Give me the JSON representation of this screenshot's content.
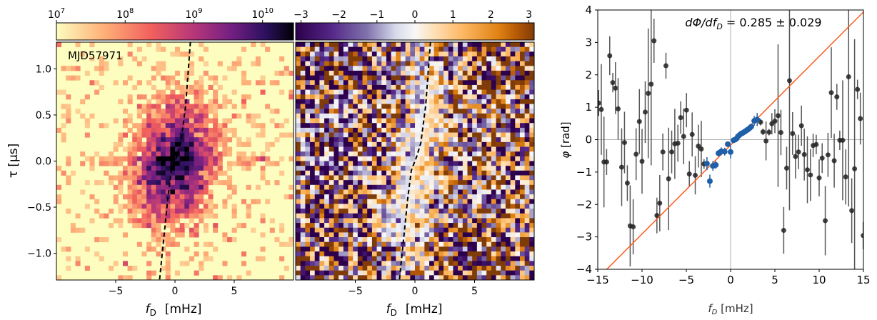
{
  "chart_data": [
    {
      "type": "heatmap",
      "panel_label": "MJD57971",
      "xlabel": "f_D   [mHz]",
      "xlabel_main": "f",
      "xlabel_sub": "D",
      "xlabel_unit": "[mHz]",
      "ylabel": "τ   [μs]",
      "xlim": [
        -10,
        10
      ],
      "ylim": [
        -1.29,
        1.29
      ],
      "xticks": [
        -5,
        0,
        5
      ],
      "xtick_labels": [
        "−5",
        "0",
        "5"
      ],
      "yticks": [
        1.0,
        0.5,
        0.0,
        -0.5,
        -1.0
      ],
      "ytick_labels": [
        "1.0",
        "0.5",
        "0.0",
        "−0.5",
        "−1.0"
      ],
      "colormap": "magma_r",
      "colorbar": {
        "scale": "log",
        "range_log10": [
          7,
          10.45
        ],
        "ticks_log10": [
          7,
          8,
          9,
          10
        ],
        "tick_labels": [
          "10",
          "10",
          "10",
          "10"
        ],
        "tick_exponents": [
          "7",
          "8",
          "9",
          "10"
        ]
      },
      "dashed_curve": {
        "x": [
          1.3,
          0.9,
          0.5,
          0.15,
          0.0,
          -0.3,
          -0.6,
          -1.3
        ],
        "y": [
          1.29,
          0.6,
          0.2,
          0.05,
          0.0,
          -0.1,
          -0.4,
          -1.29
        ]
      }
    },
    {
      "type": "heatmap",
      "xlabel_main": "f",
      "xlabel_sub": "D",
      "xlabel_unit": "[mHz]",
      "xlim": [
        -10,
        10
      ],
      "ylim": [
        -1.29,
        1.29
      ],
      "xticks": [
        -5,
        0,
        5
      ],
      "xtick_labels": [
        "−5",
        "0",
        "5"
      ],
      "colormap": "PuOr_r",
      "colorbar": {
        "scale": "linear",
        "range": [
          -3.14,
          3.14
        ],
        "ticks": [
          -3,
          -2,
          -1,
          0,
          1,
          2,
          3
        ],
        "tick_labels": [
          "−3",
          "−2",
          "−1",
          "0",
          "1",
          "2",
          "3"
        ]
      },
      "dashed_curve": {
        "x": [
          1.3,
          0.9,
          0.5,
          0.15,
          0.0,
          -0.3,
          -0.6,
          -1.3
        ],
        "y": [
          1.29,
          0.6,
          0.2,
          0.05,
          0.0,
          -0.1,
          -0.4,
          -1.29
        ]
      }
    },
    {
      "type": "scatter",
      "annotation": "dΦ/df_D = 0.285 ± 0.029",
      "annotation_parts": {
        "lhs": "dΦ/df",
        "sub": "D",
        "rhs": " = 0.285 ± 0.029"
      },
      "xlabel_main": "f",
      "xlabel_sub": "D",
      "xlabel_unit": " [mHz]",
      "ylabel_main": "φ",
      "ylabel_unit": " [rad]",
      "xlim": [
        -15,
        15
      ],
      "ylim": [
        -4,
        4
      ],
      "xticks": [
        -15,
        -10,
        -5,
        0,
        5,
        10,
        15
      ],
      "xtick_labels": [
        "−15",
        "−10",
        "−5",
        "0",
        "5",
        "10",
        "15"
      ],
      "yticks": [
        4,
        3,
        2,
        1,
        0,
        -1,
        -2,
        -3,
        -4
      ],
      "ytick_labels": [
        "4",
        "3",
        "2",
        "1",
        "0",
        "−1",
        "−2",
        "−3",
        "−4"
      ],
      "colors": {
        "points": "#222222",
        "fit_points": "#1f5fa8",
        "fit_line": "#ff5a1a",
        "zero_lines": "#b0b0b0"
      },
      "fit_line": {
        "x": [
          -15,
          15
        ],
        "y": [
          -4.28,
          3.94
        ]
      },
      "series": [
        {
          "x": [
            -14.9,
            -14.6,
            -14.3,
            -14.0,
            -13.65,
            -13.3,
            -13.0,
            -12.7,
            -12.3,
            -11.98,
            -11.66,
            -11.34,
            -11.0,
            -10.67,
            -10.3,
            -10.0,
            -9.64,
            -9.3,
            -8.97,
            -8.65,
            -8.32,
            -8.0,
            -7.65,
            -7.3,
            -7.0,
            -6.65,
            -6.3,
            -5.95,
            -5.63,
            -5.3,
            -4.98,
            -4.66,
            -4.34,
            -3.99,
            -3.64,
            -3.31,
            -3.0,
            3.39,
            3.66,
            4.0,
            4.34,
            4.66,
            5.0,
            5.36,
            5.68,
            6.0,
            6.33,
            6.65,
            7.0,
            7.33,
            7.67,
            8.0,
            8.32,
            8.67,
            9.02,
            9.32,
            9.67,
            10.0,
            10.34,
            10.69,
            11.0,
            11.37,
            11.7,
            12.0,
            12.33,
            12.66,
            13.0,
            13.33,
            13.68,
            14.0,
            14.33,
            14.65,
            14.97
          ],
          "y": [
            1.13,
            0.93,
            -0.69,
            -0.69,
            2.59,
            1.76,
            1.59,
            0.95,
            -0.85,
            -0.09,
            -1.34,
            -2.66,
            -2.69,
            -0.45,
            0.56,
            -0.67,
            0.85,
            1.43,
            1.71,
            3.05,
            -2.34,
            -1.96,
            -0.38,
            2.28,
            -1.21,
            -0.38,
            -0.13,
            -0.11,
            0.68,
            0.1,
            0.91,
            -1.06,
            0.16,
            -1.1,
            -0.2,
            -0.29,
            -0.75,
            0.54,
            0.24,
            -0.04,
            0.23,
            0.49,
            0.57,
            0.74,
            0.22,
            -2.8,
            -0.88,
            1.82,
            0.19,
            -0.52,
            -0.38,
            0.43,
            -0.46,
            -0.93,
            -1.09,
            -0.18,
            -0.15,
            -1.18,
            -0.57,
            -2.5,
            -0.47,
            1.45,
            -0.65,
            1.32,
            -0.02,
            -0.02,
            -1.15,
            1.94,
            -2.19,
            -0.9,
            1.55,
            0.65,
            -2.96
          ],
          "yerr": [
            0.4,
            1.4,
            1.4,
            0.4,
            0.6,
            0.3,
            0.8,
            0.95,
            1.2,
            0.95,
            0.55,
            1.25,
            0.85,
            0.8,
            1.0,
            1.0,
            0.95,
            2.0,
            2.5,
            0.68,
            0.55,
            0.87,
            0.57,
            0.4,
            1.58,
            0.66,
            1.08,
            0.57,
            0.5,
            0.86,
            0.53,
            0.4,
            0.68,
            0.59,
            0.66,
            0.87,
            0.15,
            0.1,
            0.1,
            0.6,
            0.1,
            0.33,
            0.37,
            2.2,
            0.7,
            0.72,
            0.66,
            4.0,
            0.66,
            0.68,
            0.53,
            0.62,
            0.8,
            1.03,
            0.8,
            0.36,
            0.3,
            0.57,
            0.46,
            1.07,
            0.68,
            1.4,
            0.83,
            0.4,
            0.3,
            1.85,
            0.85,
            4.0,
            1.0,
            4.0,
            0.3,
            0.8,
            0.42
          ]
        },
        {
          "x": [
            -2.67,
            -2.34,
            -2.0,
            -1.67,
            -1.37,
            -1.05,
            -0.67,
            -0.32,
            0.0,
            0.33,
            0.5,
            0.67,
            0.83,
            1.0,
            1.17,
            1.33,
            1.5,
            1.67,
            1.83,
            2.0,
            2.17,
            2.33,
            2.67,
            3.0
          ],
          "y": [
            -0.74,
            -1.28,
            -0.81,
            -0.78,
            -0.42,
            -0.36,
            -0.37,
            -0.14,
            -0.38,
            -0.02,
            0.0,
            0.03,
            0.1,
            0.14,
            0.18,
            0.2,
            0.23,
            0.26,
            0.29,
            0.32,
            0.36,
            0.4,
            0.58,
            0.62
          ],
          "yerr": [
            0.2,
            0.2,
            0.15,
            0.12,
            0.1,
            0.12,
            0.12,
            0.08,
            0.2,
            0.05,
            0.05,
            0.05,
            0.05,
            0.05,
            0.05,
            0.05,
            0.05,
            0.05,
            0.05,
            0.05,
            0.05,
            0.06,
            0.15,
            0.2
          ]
        }
      ]
    }
  ]
}
